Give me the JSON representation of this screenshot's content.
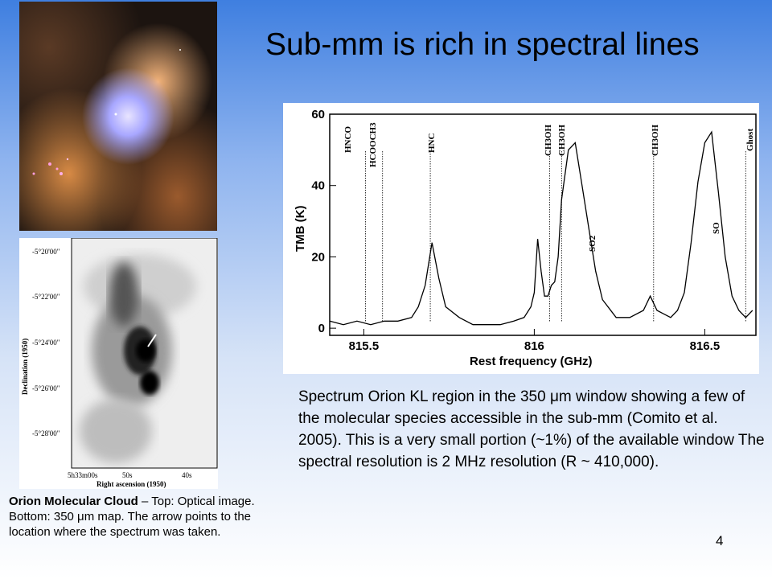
{
  "slide": {
    "title": "Sub-mm is rich in spectral lines",
    "page_number": "4"
  },
  "map": {
    "dec_ticks": [
      "-5°20'00\"",
      "-5°22'00\"",
      "-5°24'00\"",
      "-5°26'00\"",
      "-5°28'00\""
    ],
    "ra_ticks": [
      "5h33m00s",
      "50s",
      "40s"
    ],
    "ylabel": "Declination (1950)",
    "xlabel": "Right ascension (1950)"
  },
  "spectrum_labels": [
    "HNCO",
    "HCOOCH3",
    "HNC",
    "CH3OH",
    "CH3OH",
    "CH3OH",
    "Ghost",
    "SO2",
    "SO"
  ],
  "chart_data": {
    "type": "line",
    "xlabel": "Rest frequency (GHz)",
    "ylabel": "TMB (K)",
    "xlim": [
      815.4,
      816.65
    ],
    "ylim": [
      -2,
      60
    ],
    "xticks": [
      "815.5",
      "816",
      "816.5"
    ],
    "yticks": [
      "0",
      "20",
      "40",
      "60"
    ],
    "x": [
      815.4,
      815.44,
      815.48,
      815.52,
      815.56,
      815.6,
      815.64,
      815.66,
      815.68,
      815.7,
      815.72,
      815.74,
      815.78,
      815.82,
      815.86,
      815.9,
      815.94,
      815.97,
      815.99,
      816.0,
      816.01,
      816.02,
      816.03,
      816.04,
      816.05,
      816.06,
      816.07,
      816.08,
      816.1,
      816.12,
      816.14,
      816.16,
      816.18,
      816.2,
      816.24,
      816.28,
      816.32,
      816.34,
      816.36,
      816.38,
      816.4,
      816.42,
      816.44,
      816.46,
      816.48,
      816.5,
      816.52,
      816.54,
      816.56,
      816.58,
      816.6,
      816.62,
      816.64
    ],
    "y": [
      2,
      1,
      2,
      1,
      2,
      2,
      3,
      6,
      12,
      24,
      14,
      6,
      3,
      1,
      1,
      1,
      2,
      3,
      6,
      10,
      25,
      16,
      9,
      9,
      12,
      13,
      20,
      36,
      50,
      52,
      40,
      28,
      16,
      8,
      3,
      3,
      5,
      9,
      5,
      4,
      3,
      5,
      10,
      24,
      41,
      52,
      55,
      38,
      20,
      9,
      5,
      3,
      5
    ],
    "line_markers": [
      815.505,
      815.555,
      815.695,
      816.045,
      816.08,
      816.35,
      816.62
    ]
  },
  "texts": {
    "description": "Spectrum Orion KL region in the 350 μm window showing a few of the molecular species accessible in the sub-mm (Comito et al. 2005).  This is a very small portion (~1%) of the available window The spectral resolution is 2 MHz resolution (R ~ 410,000).",
    "caption_bold": "Orion Molecular Cloud",
    "caption_rest": " – Top: Optical image.  Bottom: 350 μm map.  The arrow points to the location where the spectrum was taken."
  }
}
